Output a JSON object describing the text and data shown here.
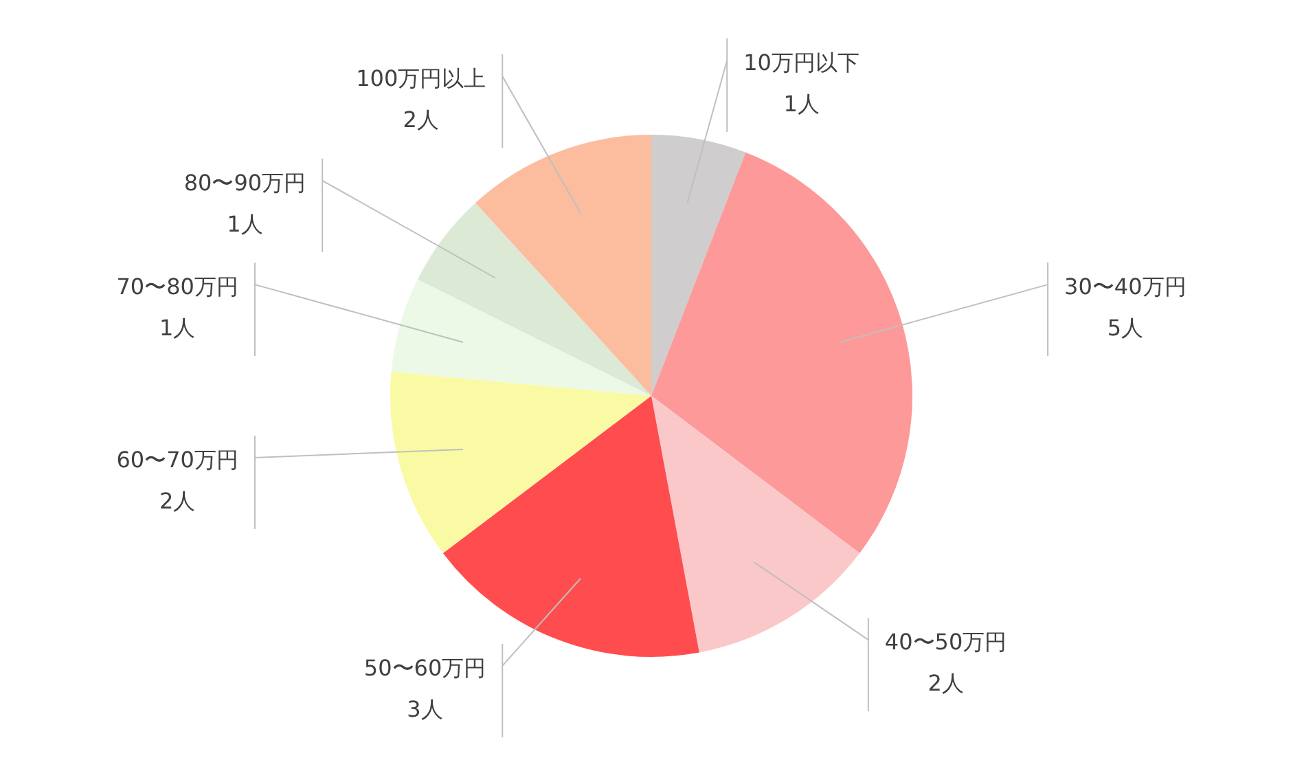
{
  "chart_data": {
    "type": "pie",
    "categories": [
      "10万円以下",
      "30〜40万円",
      "40〜50万円",
      "50〜60万円",
      "60〜70万円",
      "70〜80万円",
      "80〜90万円",
      "100万円以上"
    ],
    "values": [
      1,
      5,
      2,
      3,
      2,
      1,
      1,
      2
    ],
    "value_labels": [
      "1人",
      "5人",
      "2人",
      "3人",
      "2人",
      "1人",
      "1人",
      "2人"
    ],
    "colors": [
      "#cfcdcd",
      "#fe9999",
      "#fbc8ca",
      "#ff4d4f",
      "#fbfaa4",
      "#ebf9e6",
      "#dce9d5",
      "#fbbd9e"
    ]
  }
}
